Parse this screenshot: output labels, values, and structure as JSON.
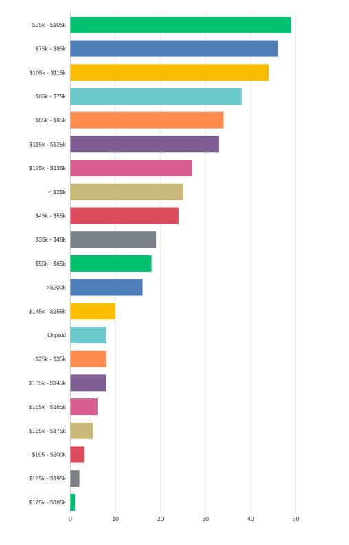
{
  "chart_data": {
    "type": "bar",
    "orientation": "horizontal",
    "categories": [
      "$95k - $105k",
      "$75k - $85k",
      "$105k - $115k",
      "$65k - $75k",
      "$85k - $95k",
      "$115k - $125k",
      "$125k - $135k",
      "< $25k",
      "$45k - $55k",
      "$35k - $45k",
      "$55k - $65k",
      ">$200k",
      "$145k - $155k",
      "Unpaid",
      "$25k - $35k",
      "$135k - $145k",
      "$155k - $165k",
      "$165k - $175k",
      "$195 - $200k",
      "$185k - $195k",
      "$175k - $185k"
    ],
    "values": [
      49,
      46,
      44,
      38,
      34,
      33,
      27,
      25,
      24,
      19,
      18,
      16,
      10,
      8,
      8,
      8,
      6,
      5,
      3,
      2,
      1
    ],
    "xlim": [
      0,
      50
    ],
    "xticks": [
      0,
      10,
      20,
      30,
      40,
      50
    ],
    "grid": "vertical",
    "legend": "none",
    "colors": [
      "#00c16e",
      "#4e7eb8",
      "#f9be00",
      "#6ccacc",
      "#ff8d4f",
      "#7e5e93",
      "#d85e91",
      "#cbb97a",
      "#dd4b5d",
      "#7a8089"
    ]
  }
}
